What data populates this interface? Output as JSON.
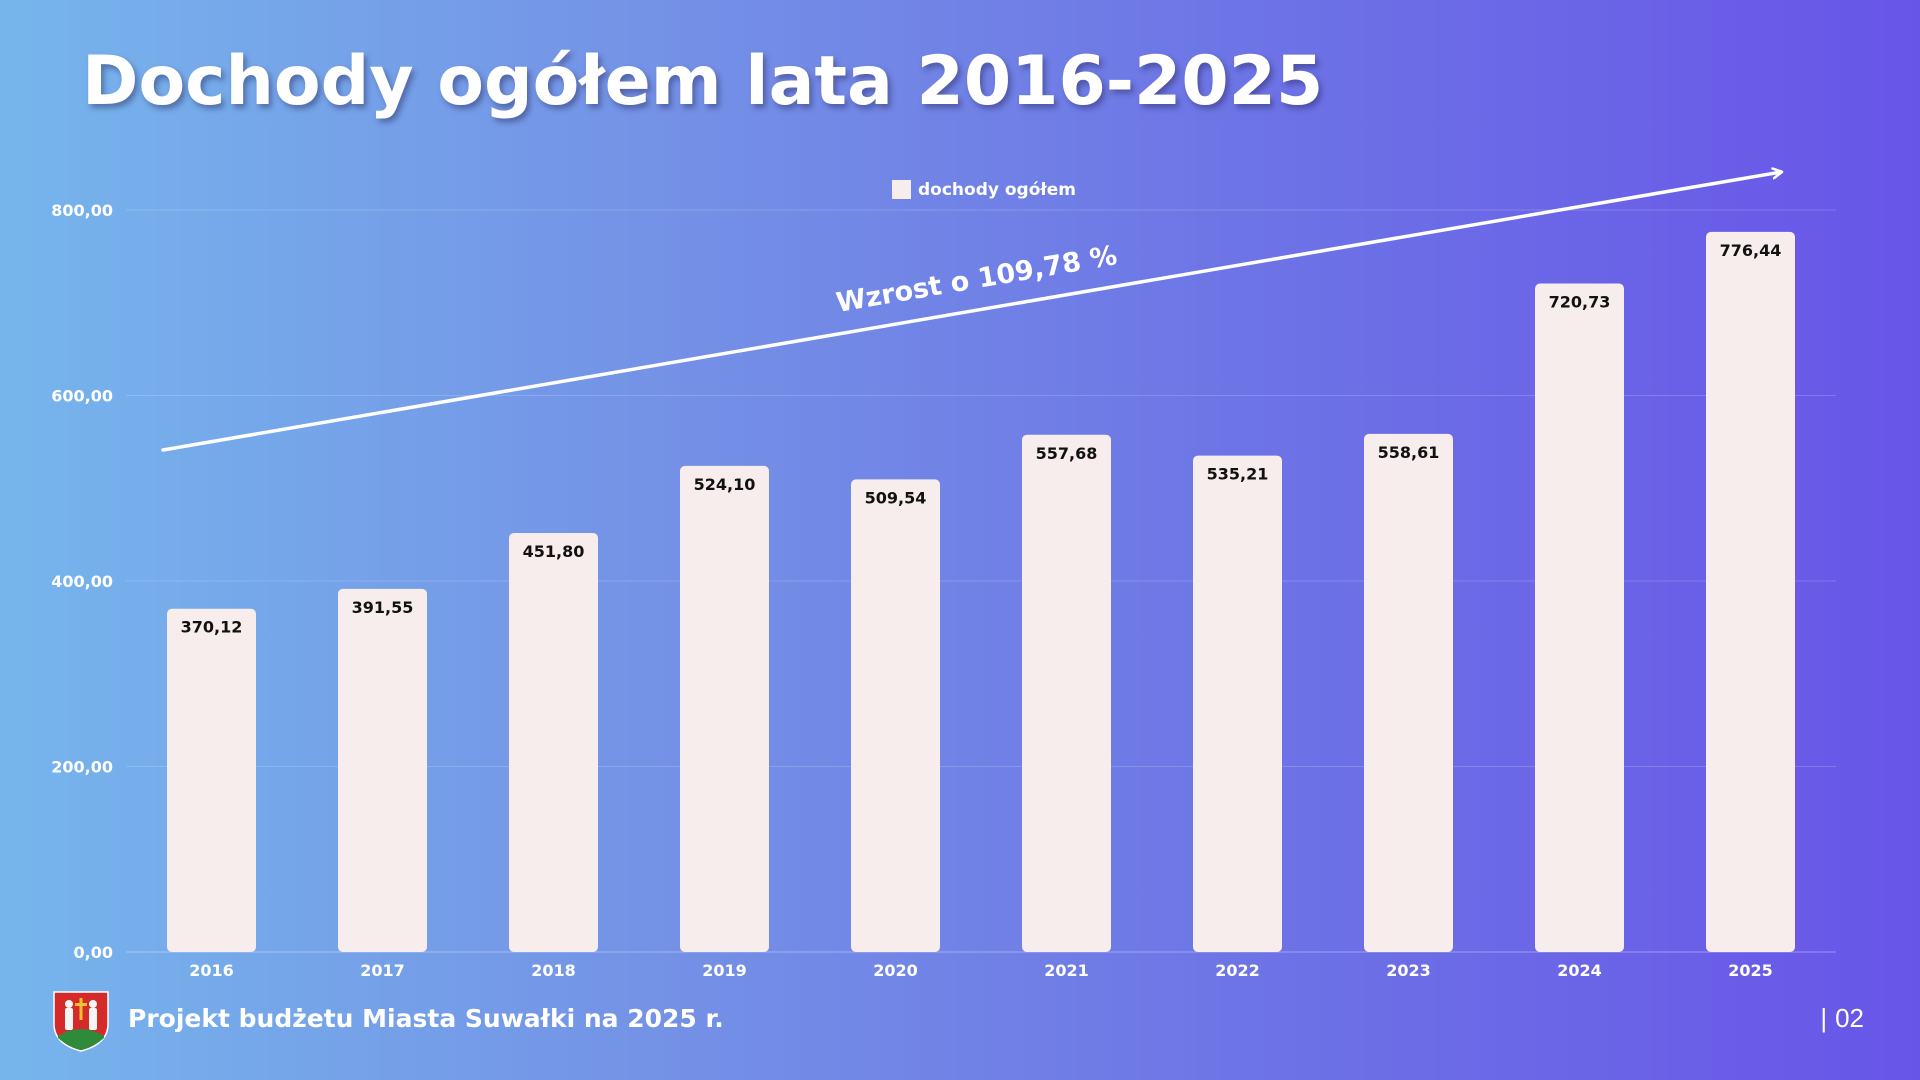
{
  "page": {
    "title": "Dochody ogółem lata 2016-2025",
    "footer_title": "Projekt budżetu Miasta Suwałki na 2025 r.",
    "page_number": "02",
    "page_separator": "|",
    "logo_icon": "suwalki-coat-of-arms-icon"
  },
  "colors": {
    "bar": "#f8eded",
    "text": "#ffffff",
    "label": "#111111",
    "grid": "rgba(255,255,255,0.18)"
  },
  "chart_data": {
    "type": "bar",
    "title": "",
    "xlabel": "",
    "ylabel": "",
    "legend": [
      "dochody ogółem"
    ],
    "legend_position": "top-center",
    "categories": [
      "2016",
      "2017",
      "2018",
      "2019",
      "2020",
      "2021",
      "2022",
      "2023",
      "2024",
      "2025"
    ],
    "series": [
      {
        "name": "dochody ogółem",
        "values": [
          370.12,
          391.55,
          451.8,
          524.1,
          509.54,
          557.68,
          535.21,
          558.61,
          720.73,
          776.44
        ]
      }
    ],
    "data_labels": [
      "370,12",
      "391,55",
      "451,80",
      "524,10",
      "509,54",
      "557,68",
      "535,21",
      "558,61",
      "720,73",
      "776,44"
    ],
    "ylim": [
      0,
      800
    ],
    "yticks": [
      0,
      200,
      400,
      600,
      800
    ],
    "ytick_labels": [
      "0,00",
      "200,00",
      "400,00",
      "600,00",
      "800,00"
    ],
    "grid": true,
    "annotation": "Wzrost o 109,78 %"
  }
}
